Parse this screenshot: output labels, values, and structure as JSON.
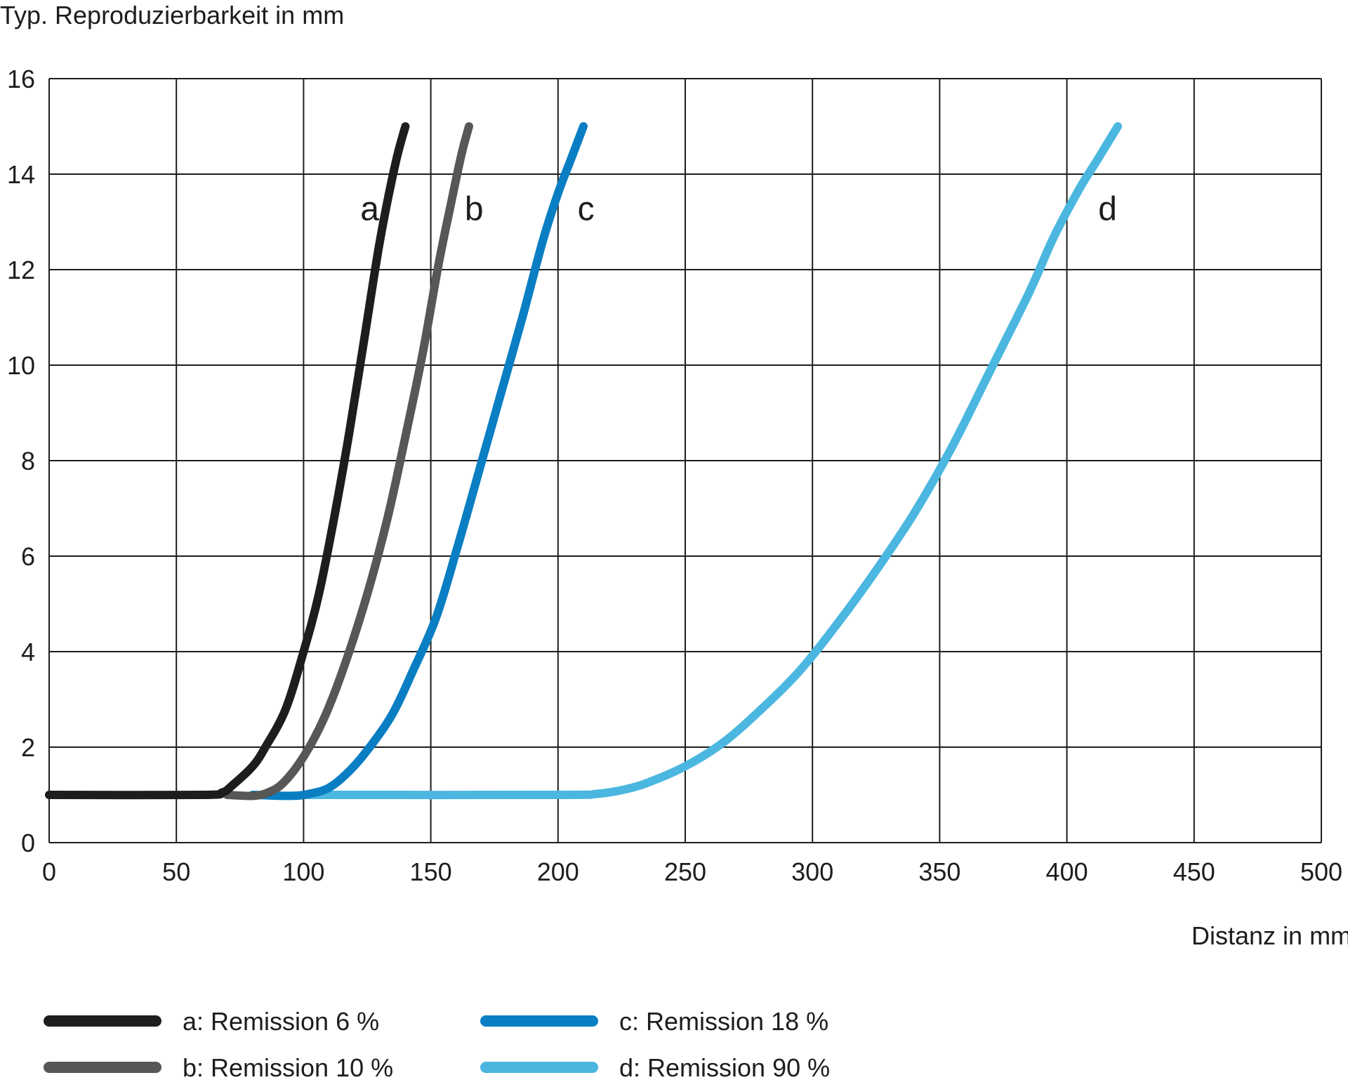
{
  "chart_data": {
    "type": "line",
    "ylabel": "Typ. Reproduzierbarkeit in mm",
    "xlabel": "Distanz in mm",
    "xlim": [
      0,
      500
    ],
    "ylim": [
      0,
      16
    ],
    "xticks": [
      0,
      50,
      100,
      150,
      200,
      250,
      300,
      350,
      400,
      450,
      500
    ],
    "yticks": [
      0,
      2,
      4,
      6,
      8,
      10,
      12,
      14,
      16
    ],
    "grid": true,
    "legend_position": "bottom",
    "series": [
      {
        "name": "a",
        "legend": "a: Remission 6 %",
        "color": "#1d1d1b",
        "x": [
          0,
          60,
          68,
          72,
          80,
          85,
          93,
          100,
          106,
          112,
          118,
          124,
          130,
          136,
          140
        ],
        "y": [
          1,
          1,
          1.05,
          1.2,
          1.6,
          2.0,
          2.8,
          4.0,
          5.2,
          6.8,
          8.6,
          10.6,
          12.6,
          14.2,
          15
        ]
      },
      {
        "name": "b",
        "legend": "b: Remission 10 %",
        "color": "#575756",
        "x": [
          70,
          80,
          86,
          92,
          100,
          108,
          116,
          125,
          133,
          140,
          147,
          153,
          158,
          162,
          165
        ],
        "y": [
          1,
          0.98,
          1.05,
          1.25,
          1.8,
          2.6,
          3.7,
          5.2,
          6.8,
          8.5,
          10.3,
          12.1,
          13.4,
          14.4,
          15
        ]
      },
      {
        "name": "c",
        "legend": "c: Remission 18 %",
        "color": "#0a7ec2",
        "x": [
          80,
          95,
          102,
          110,
          118,
          126,
          135,
          143,
          152,
          160,
          168,
          177,
          186,
          194,
          200,
          205,
          210
        ],
        "y": [
          1,
          0.98,
          1.02,
          1.15,
          1.5,
          2.0,
          2.7,
          3.6,
          4.7,
          6.1,
          7.6,
          9.3,
          11.0,
          12.6,
          13.6,
          14.3,
          15
        ]
      },
      {
        "name": "d",
        "legend": "d: Remission 90 %",
        "color": "#4bb7e0",
        "x": [
          100,
          200,
          215,
          225,
          235,
          250,
          265,
          280,
          295,
          310,
          325,
          340,
          355,
          370,
          385,
          395,
          405,
          412,
          420
        ],
        "y": [
          1,
          1,
          1.02,
          1.1,
          1.25,
          1.6,
          2.1,
          2.8,
          3.6,
          4.6,
          5.7,
          6.9,
          8.3,
          9.9,
          11.5,
          12.7,
          13.7,
          14.3,
          15
        ]
      }
    ],
    "annotations": [
      {
        "text": "a",
        "x": 126,
        "y": 13.3
      },
      {
        "text": "b",
        "x": 167,
        "y": 13.3
      },
      {
        "text": "c",
        "x": 211,
        "y": 13.3
      },
      {
        "text": "d",
        "x": 416,
        "y": 13.3
      }
    ]
  }
}
